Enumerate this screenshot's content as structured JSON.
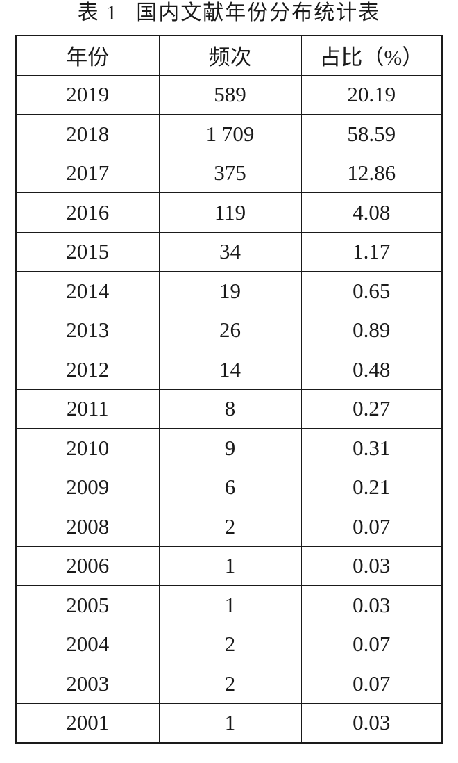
{
  "title": {
    "label": "表 1",
    "text": "国内文献年份分布统计表"
  },
  "table": {
    "header": [
      "年份",
      "频次",
      "占比（%）"
    ],
    "rows": [
      [
        "2019",
        "589",
        "20.19"
      ],
      [
        "2018",
        "1 709",
        "58.59"
      ],
      [
        "2017",
        "375",
        "12.86"
      ],
      [
        "2016",
        "119",
        "4.08"
      ],
      [
        "2015",
        "34",
        "1.17"
      ],
      [
        "2014",
        "19",
        "0.65"
      ],
      [
        "2013",
        "26",
        "0.89"
      ],
      [
        "2012",
        "14",
        "0.48"
      ],
      [
        "2011",
        "8",
        "0.27"
      ],
      [
        "2010",
        "9",
        "0.31"
      ],
      [
        "2009",
        "6",
        "0.21"
      ],
      [
        "2008",
        "2",
        "0.07"
      ],
      [
        "2006",
        "1",
        "0.03"
      ],
      [
        "2005",
        "1",
        "0.03"
      ],
      [
        "2004",
        "2",
        "0.07"
      ],
      [
        "2003",
        "2",
        "0.07"
      ],
      [
        "2001",
        "1",
        "0.03"
      ]
    ]
  }
}
